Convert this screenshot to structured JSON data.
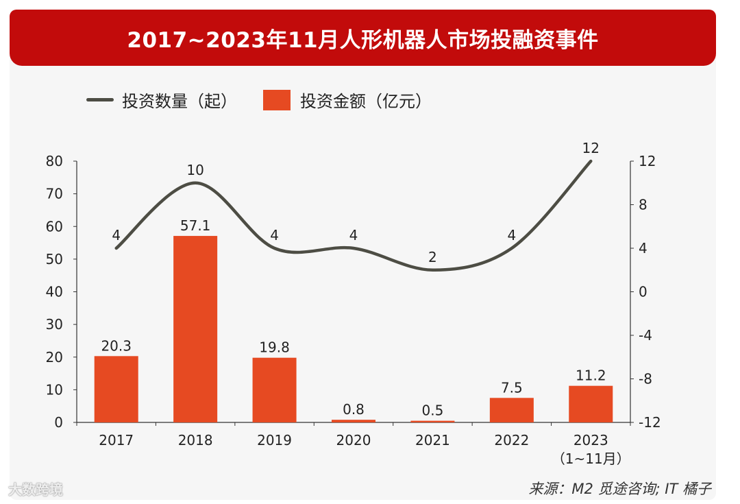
{
  "title": "2017~2023年11月人形机器人市场投融资事件",
  "legend": {
    "line": "投资数量（起）",
    "bar": "投资金额（亿元）"
  },
  "source": "来源：M2 觅途咨询; IT 橘子",
  "watermark": "大数跨境",
  "colors": {
    "banner": "#c20b0b",
    "bar": "#e64a22",
    "line": "#4d4d44"
  },
  "chart_data": {
    "type": "bar",
    "categories": [
      "2017",
      "2018",
      "2019",
      "2020",
      "2021",
      "2022",
      "2023"
    ],
    "category_sublabels": [
      "",
      "",
      "",
      "",
      "",
      "",
      "（1~11月）"
    ],
    "series": [
      {
        "name": "投资金额（亿元）",
        "type": "bar",
        "axis": "left",
        "values": [
          20.3,
          57.1,
          19.8,
          0.8,
          0.5,
          7.5,
          11.2
        ],
        "labels": [
          "20.3",
          "57.1",
          "19.8",
          "0.8",
          "0.5",
          "7.5",
          "11.2"
        ]
      },
      {
        "name": "投资数量（起）",
        "type": "line",
        "axis": "right",
        "values": [
          4,
          10,
          4,
          4,
          2,
          4,
          12
        ],
        "labels": [
          "4",
          "10",
          "4",
          "4",
          "2",
          "4",
          "12"
        ]
      }
    ],
    "left_axis": {
      "min": 0,
      "max": 80,
      "ticks": [
        "0",
        "10",
        "20",
        "30",
        "40",
        "50",
        "60",
        "70",
        "80"
      ]
    },
    "right_axis": {
      "min": -12,
      "max": 12,
      "ticks": [
        "-12",
        "-8",
        "-4",
        "0",
        "4",
        "8",
        "12"
      ]
    },
    "title": "2017~2023年11月人形机器人市场投融资事件",
    "xlabel": "",
    "ylabel": ""
  }
}
